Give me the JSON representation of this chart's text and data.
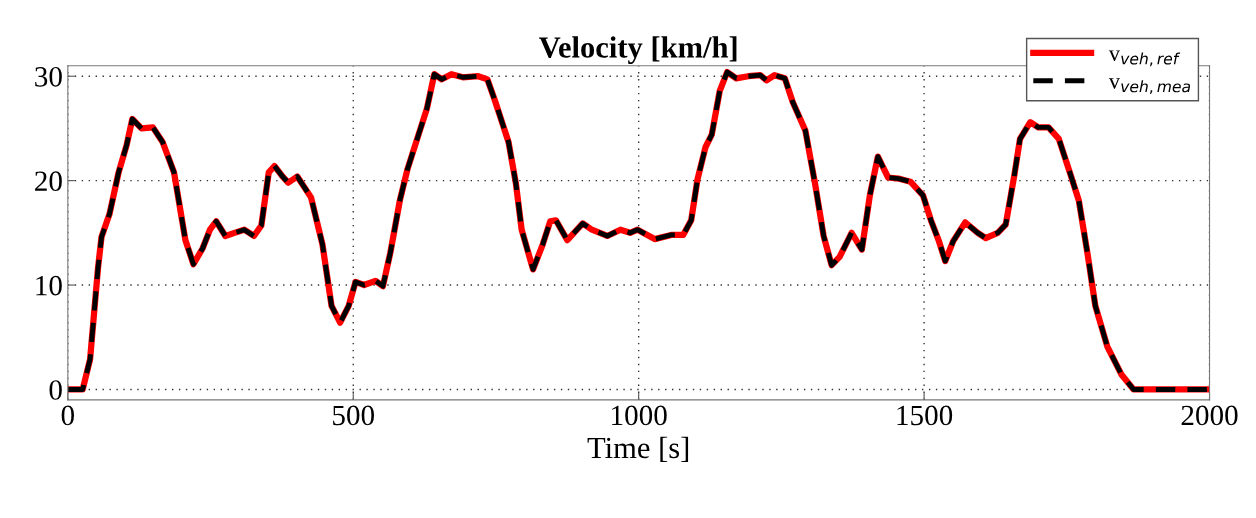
{
  "chart_data": {
    "type": "line",
    "title": "Velocity [km/h]",
    "xlabel": "Time [s]",
    "x": [
      0,
      26,
      39,
      53,
      59,
      73,
      89,
      103,
      113,
      129,
      149,
      166,
      186,
      206,
      220,
      236,
      249,
      260,
      276,
      292,
      309,
      326,
      339,
      352,
      362,
      376,
      386,
      402,
      426,
      446,
      462,
      477,
      492,
      504,
      519,
      539,
      552,
      565,
      582,
      595,
      612,
      629,
      642,
      655,
      672,
      692,
      719,
      735,
      748,
      772,
      785,
      795,
      815,
      832,
      845,
      855,
      875,
      902,
      918,
      945,
      968,
      985,
      998,
      1028,
      1057,
      1078,
      1092,
      1103,
      1117,
      1128,
      1142,
      1155,
      1171,
      1192,
      1213,
      1224,
      1238,
      1256,
      1270,
      1292,
      1309,
      1324,
      1338,
      1352,
      1373,
      1391,
      1405,
      1419,
      1437,
      1455,
      1476,
      1498,
      1512,
      1526,
      1537,
      1551,
      1572,
      1594,
      1608,
      1629,
      1643,
      1658,
      1668,
      1686,
      1700,
      1718,
      1736,
      1757,
      1771,
      1786,
      1800,
      1821,
      1846,
      1867,
      1992,
      2000
    ],
    "series": [
      {
        "name": "v$_{veh,ref}$",
        "color": "#ff0000",
        "line_style": "solid",
        "values": [
          0,
          0,
          2.9,
          11.7,
          14.6,
          16.8,
          20.8,
          23.4,
          25.9,
          25,
          25.1,
          23.7,
          20.8,
          14.3,
          12.0,
          13.5,
          15.3,
          16.1,
          14.7,
          15.0,
          15.3,
          14.7,
          15.7,
          20.8,
          21.4,
          20.4,
          19.8,
          20.4,
          18.4,
          13.9,
          8.0,
          6.4,
          8.0,
          10.3,
          10.0,
          10.4,
          9.9,
          13.1,
          18.2,
          21.1,
          24.0,
          26.9,
          30.2,
          29.7,
          30.2,
          29.9,
          30,
          29.7,
          27.7,
          23.7,
          19.7,
          15.3,
          11.5,
          13.9,
          16.1,
          16.2,
          14.3,
          15.9,
          15.3,
          14.7,
          15.3,
          15.0,
          15.3,
          14.4,
          14.8,
          14.8,
          16.2,
          20.1,
          23.2,
          24.4,
          28.6,
          30.4,
          29.8,
          30,
          30.1,
          29.6,
          30.1,
          29.8,
          27.5,
          24.8,
          19.7,
          14.7,
          11.9,
          12.7,
          15.0,
          13.4,
          18.6,
          22.3,
          20.3,
          20.2,
          19.9,
          18.6,
          16.2,
          14.2,
          12.3,
          14.2,
          16.0,
          15.0,
          14.5,
          15.0,
          15.8,
          20.5,
          24.0,
          25.6,
          25.1,
          25.1,
          24.0,
          20.5,
          18.1,
          13.1,
          8.0,
          4.1,
          1.4,
          0,
          0,
          0
        ]
      },
      {
        "name": "v$_{veh,mea}$",
        "color": "#000000",
        "line_style": "dashed",
        "values": [
          0,
          0,
          2.9,
          11.7,
          14.6,
          16.8,
          20.8,
          23.4,
          25.9,
          25,
          25.1,
          23.7,
          20.8,
          14.3,
          12.0,
          13.5,
          15.3,
          16.1,
          14.7,
          15.0,
          15.3,
          14.7,
          15.7,
          20.8,
          21.4,
          20.4,
          19.8,
          20.4,
          18.4,
          13.9,
          8.0,
          6.4,
          8.0,
          10.3,
          10.0,
          10.4,
          9.9,
          13.1,
          18.2,
          21.1,
          24.0,
          26.9,
          30.2,
          29.7,
          30.2,
          29.9,
          30,
          29.7,
          27.7,
          23.7,
          19.7,
          15.3,
          11.5,
          13.9,
          16.1,
          16.2,
          14.3,
          15.9,
          15.3,
          14.7,
          15.3,
          15.0,
          15.3,
          14.4,
          14.8,
          14.8,
          16.2,
          20.1,
          23.2,
          24.4,
          28.6,
          30.4,
          29.8,
          30,
          30.1,
          29.6,
          30.1,
          29.8,
          27.5,
          24.8,
          19.7,
          14.7,
          11.9,
          12.7,
          15.0,
          13.4,
          18.6,
          22.3,
          20.3,
          20.2,
          19.9,
          18.6,
          16.2,
          14.2,
          12.3,
          14.2,
          16.0,
          15.0,
          14.5,
          15.0,
          15.8,
          20.5,
          24.0,
          25.6,
          25.1,
          25.1,
          24.0,
          20.5,
          18.1,
          13.1,
          8.0,
          4.1,
          1.4,
          0,
          0,
          0
        ]
      }
    ],
    "xlim": [
      0,
      2000
    ],
    "xticks": [
      0,
      500,
      1000,
      1500,
      2000
    ],
    "ylim": [
      -1,
      31
    ],
    "yticks": [
      0,
      10,
      20,
      30
    ],
    "grid": true,
    "legend": "top right"
  }
}
